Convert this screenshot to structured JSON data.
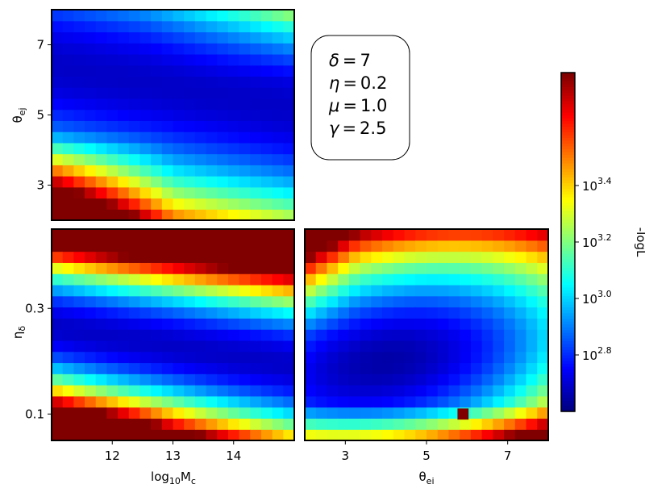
{
  "chart_data": [
    {
      "type": "heatmap",
      "panel": "top-left",
      "xlabel": "",
      "ylabel": "θ_ej",
      "xlim": [
        11.0,
        15.0
      ],
      "ylim": [
        2.0,
        8.0
      ],
      "yticks": [
        {
          "v": 3,
          "label": "3"
        },
        {
          "v": 5,
          "label": "5"
        },
        {
          "v": 7,
          "label": "7"
        }
      ],
      "xticks": [],
      "grid": false,
      "nx": 22,
      "ny": 19,
      "description": "-logL over log10 Mc and θ_ej; minimum valley near θ_ej≈5 around log10 Mc 13–14"
    },
    {
      "type": "heatmap",
      "panel": "bottom-left",
      "xlabel": "log10 Mc",
      "ylabel": "η_δ",
      "xlim": [
        11.0,
        15.0
      ],
      "ylim": [
        0.05,
        0.45
      ],
      "xticks": [
        {
          "v": 12,
          "label": "12"
        },
        {
          "v": 13,
          "label": "13"
        },
        {
          "v": 14,
          "label": "14"
        }
      ],
      "yticks": [
        {
          "v": 0.1,
          "label": "0.1"
        },
        {
          "v": 0.3,
          "label": "0.3"
        }
      ],
      "grid": false,
      "nx": 22,
      "ny": 19,
      "description": "-logL over log10 Mc and η_δ; minimum band near η_δ≈0.25"
    },
    {
      "type": "heatmap",
      "panel": "bottom-right",
      "xlabel": "θ_ej",
      "ylabel": "",
      "xlim": [
        2.0,
        8.0
      ],
      "ylim": [
        0.05,
        0.45
      ],
      "xticks": [
        {
          "v": 3,
          "label": "3"
        },
        {
          "v": 5,
          "label": "5"
        },
        {
          "v": 7,
          "label": "7"
        }
      ],
      "yticks": [],
      "grid": false,
      "nx": 22,
      "ny": 19,
      "marker": {
        "x": 5.9,
        "y": 0.1,
        "color": "#800000"
      },
      "description": "-logL over θ_ej and η_δ; minimum near θ_ej≈4, η_δ≈0.2"
    },
    {
      "type": "colorbar",
      "label": "-logL",
      "colormap": "jet",
      "scale": "log",
      "range": [
        10.0,
        11.2
      ],
      "ticks": [
        {
          "v": 10.8,
          "label": "10^3.4"
        },
        {
          "v": 10.6,
          "label": "10^3.2"
        },
        {
          "v": 10.4,
          "label": "10^3.0"
        },
        {
          "v": 10.2,
          "label": "10^2.8"
        }
      ],
      "placement": "right"
    }
  ],
  "params_box": {
    "lines": [
      {
        "name": "δ",
        "value": "7"
      },
      {
        "name": "η",
        "value": "0.2"
      },
      {
        "name": "μ",
        "value": "1.0"
      },
      {
        "name": "γ",
        "value": "2.5"
      }
    ]
  }
}
